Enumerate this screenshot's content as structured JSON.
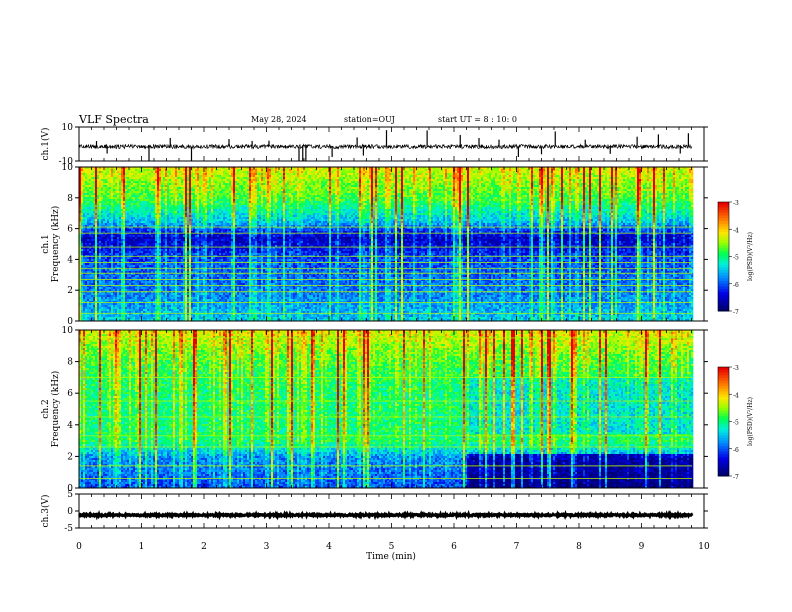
{
  "header": {
    "title": "VLF Spectra",
    "date": "May 28, 2024",
    "station": "station=OUJ",
    "start": "start  UT  =   8 : 10: 0"
  },
  "colors": {
    "spectro_lo": "#00008b",
    "spectro_mid_low": "#0000ff",
    "spectro_mid": "#00ffff",
    "spectro_green": "#00ff00",
    "spectro_yellow": "#ffff00",
    "spectro_hi": "#ff0000",
    "trace": "#000000"
  },
  "chart_data": [
    {
      "type": "line",
      "id": "ch1-waveform",
      "ylabel": "ch.1(V)",
      "ylim": [
        -10,
        10
      ],
      "yticks": [
        "10",
        "-10"
      ],
      "xlim": [
        0,
        10
      ],
      "description_series": {
        "name": "",
        "baseline": -1.5,
        "noise_amplitude": 1.2,
        "spikes_x": [
          0.28,
          0.45,
          1.12,
          1.46,
          1.8,
          2.4,
          2.77,
          3.04,
          3.52,
          3.58,
          3.63,
          4.05,
          4.45,
          4.55,
          4.92,
          5.57,
          6.1,
          6.4,
          6.72,
          7.03,
          7.4,
          7.62,
          8.1,
          8.5,
          8.93,
          9.27,
          9.62,
          9.75
        ]
      }
    },
    {
      "type": "heatmap",
      "id": "ch1-spectrogram",
      "ylabel": "ch.1\nFrequency (kHz)",
      "ylim": [
        0,
        10
      ],
      "yticks": [
        "0",
        "2",
        "4",
        "6",
        "8",
        "10"
      ],
      "xlim": [
        0,
        9.8
      ],
      "colorbar": {
        "label": "log(PSD)(V²/Hz)",
        "range": [
          -7,
          -3
        ],
        "ticks": [
          "-3",
          "-4",
          "-5",
          "-6",
          "-7"
        ]
      },
      "profile_kHz_log": [
        [
          0,
          -5.5
        ],
        [
          2,
          -5.9
        ],
        [
          4,
          -6.1
        ],
        [
          5.5,
          -6.6
        ],
        [
          6.5,
          -5.6
        ],
        [
          8,
          -4.8
        ],
        [
          10,
          -4.3
        ]
      ],
      "narrowband_lines_kHz": [
        0.5,
        1.2,
        1.9,
        2.3,
        2.7,
        3.1,
        3.4,
        3.8,
        4.2,
        4.8,
        5.7,
        6.1
      ]
    },
    {
      "type": "heatmap",
      "id": "ch2-spectrogram",
      "ylabel": "ch.2\nFrequency (kHz)",
      "ylim": [
        0,
        10
      ],
      "yticks": [
        "0",
        "2",
        "4",
        "6",
        "8",
        "10"
      ],
      "xlim": [
        0,
        9.8
      ],
      "colorbar": {
        "label": "log(PSD)(V²/Hz)",
        "range": [
          -7,
          -3
        ],
        "ticks": [
          "-3",
          "-4",
          "-5",
          "-6",
          "-7"
        ]
      },
      "profile_kHz_log": [
        [
          0,
          -6.1
        ],
        [
          2,
          -5.8
        ],
        [
          3,
          -5.0
        ],
        [
          6,
          -5.0
        ],
        [
          8,
          -4.8
        ],
        [
          10,
          -4.3
        ]
      ],
      "quiet_region_after_min": 6.2,
      "narrowband_lines_kHz": [
        0.6,
        1.4,
        2.6,
        3.3,
        4.5,
        5.5,
        7.0,
        9.5
      ]
    },
    {
      "type": "line",
      "id": "ch3-waveform",
      "ylabel": "ch.3(V)",
      "ylim": [
        -5,
        5
      ],
      "yticks": [
        "5",
        "0",
        "-5"
      ],
      "xlim": [
        0,
        10
      ],
      "xlabel": "Time (min)",
      "xticks": [
        "0",
        "1",
        "2",
        "3",
        "4",
        "5",
        "6",
        "7",
        "8",
        "9",
        "10"
      ],
      "description_series": {
        "name": "",
        "baseline": -1.2,
        "noise_amplitude": 0.25
      }
    }
  ]
}
